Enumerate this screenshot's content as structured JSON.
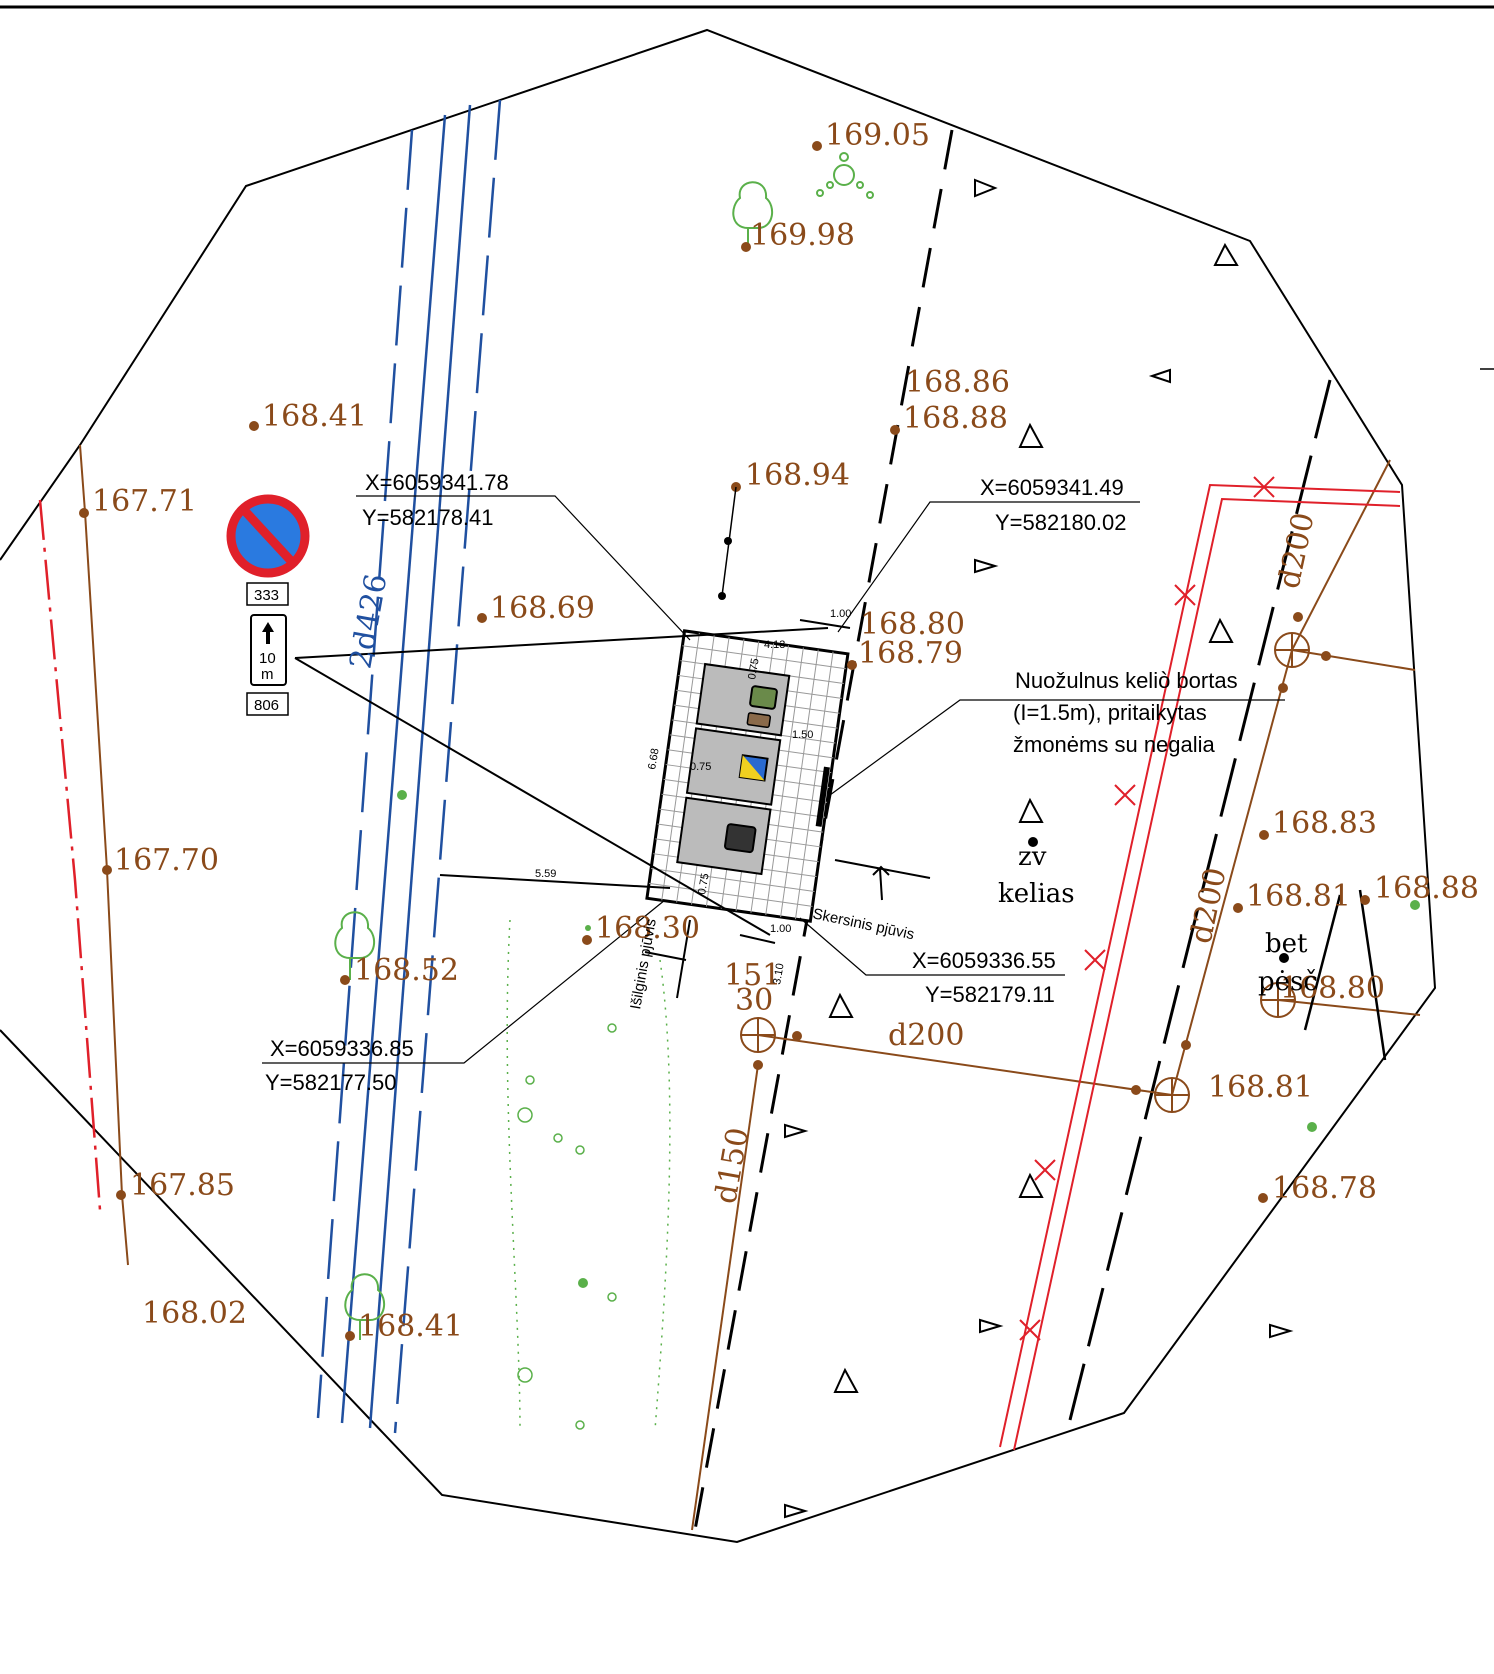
{
  "elevations": [
    {
      "id": "e1",
      "value": "169.05"
    },
    {
      "id": "e2",
      "value": "169.98"
    },
    {
      "id": "e3",
      "value": "168.86"
    },
    {
      "id": "e4",
      "value": "168.88"
    },
    {
      "id": "e5",
      "value": "168.41"
    },
    {
      "id": "e6",
      "value": "168.94"
    },
    {
      "id": "e7",
      "value": "167.71"
    },
    {
      "id": "e8",
      "value": "168.69"
    },
    {
      "id": "e9",
      "value": "168.80"
    },
    {
      "id": "e10",
      "value": "168.79"
    },
    {
      "id": "e11",
      "value": "167.70"
    },
    {
      "id": "e12",
      "value": "168.83"
    },
    {
      "id": "e13",
      "value": "168.81"
    },
    {
      "id": "e14",
      "value": "168.88"
    },
    {
      "id": "e15",
      "value": "168.30"
    },
    {
      "id": "e16",
      "value": "168.52"
    },
    {
      "id": "e17",
      "value": "168.80"
    },
    {
      "id": "e18",
      "value": "168.81"
    },
    {
      "id": "e19",
      "value": "167.85"
    },
    {
      "id": "e20",
      "value": "168.78"
    },
    {
      "id": "e21",
      "value": "168.02"
    },
    {
      "id": "e22",
      "value": "168.41"
    }
  ],
  "coordinates": {
    "c1": {
      "x": "X=6059341.78",
      "y": "Y=582178.41"
    },
    "c2": {
      "x": "X=6059341.49",
      "y": "Y=582180.02"
    },
    "c3": {
      "x": "X=6059336.55",
      "y": "Y=582179.11"
    },
    "c4": {
      "x": "X=6059336.85",
      "y": "Y=582177.50"
    }
  },
  "note": {
    "line1": "Nuožulnus keliò bortas",
    "line2": "(I=1.5m), pritaikytas",
    "line3": "žmonėms su negalia"
  },
  "sections": {
    "cross": "Skersinis pjūvis",
    "longitudinal": "Išilginis pjūvis"
  },
  "pipes": {
    "d426": "2d426",
    "d200_a": "d200",
    "d200_b": "d200",
    "d200_c": "d200",
    "d150": "d150"
  },
  "labels": {
    "zv": "zv",
    "kelias": "kelias",
    "bet": "bet",
    "pesc": "pėsč",
    "well_top": "151",
    "well_bottom": "30"
  },
  "dimensions": {
    "w1": "1.00",
    "w2": "4.13",
    "w3": "1.50",
    "w4": "0.75",
    "w5": "0.75",
    "w6": "0.75",
    "w7": "6.68",
    "w8": "5.59",
    "w9": "1.00",
    "w10": "3.10"
  },
  "sign": {
    "code_top": "333",
    "arrow_value": "10",
    "arrow_unit": "m",
    "code_bottom": "806"
  },
  "colors": {
    "elevation": "#8a4a1a",
    "water": "#2050a0",
    "electric": "#e0202a",
    "vegetation": "#5ab04a",
    "outline": "#000000"
  }
}
